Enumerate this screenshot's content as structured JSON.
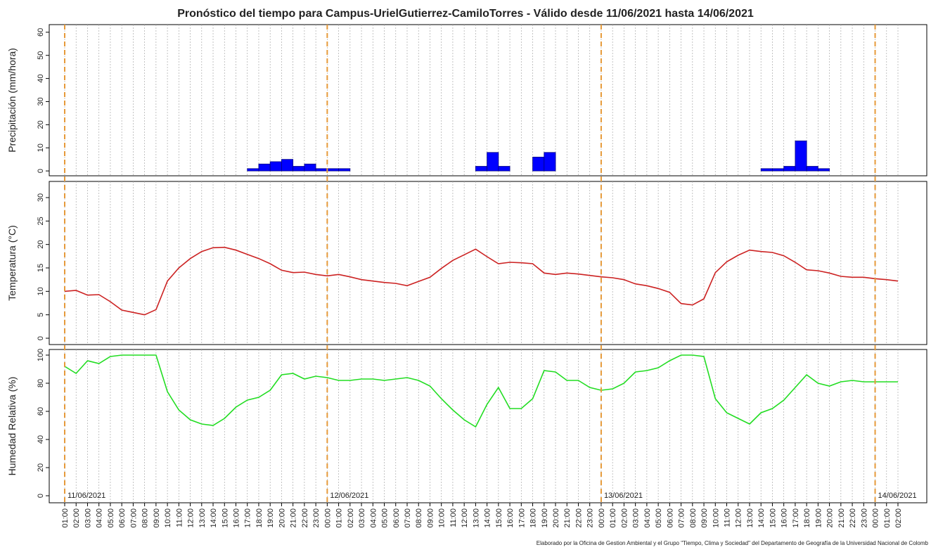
{
  "title": "Pronóstico del tiempo para Campus-UrielGutierrez-CamiloTorres - Válido desde 11/06/2021 hasta 14/06/2021",
  "source": "Elaborado por la Oficina de Gestion Ambiental y el Grupo \"Tiempo, Clima y Sociedad\" del Departamento de Geografía de la Universidad Nacional de Colomb",
  "categories": [
    "01:00",
    "02:00",
    "03:00",
    "04:00",
    "05:00",
    "06:00",
    "07:00",
    "08:00",
    "09:00",
    "10:00",
    "11:00",
    "12:00",
    "13:00",
    "14:00",
    "15:00",
    "16:00",
    "17:00",
    "18:00",
    "19:00",
    "20:00",
    "21:00",
    "22:00",
    "23:00",
    "00:00",
    "01:00",
    "02:00",
    "03:00",
    "04:00",
    "05:00",
    "06:00",
    "07:00",
    "08:00",
    "09:00",
    "10:00",
    "11:00",
    "12:00",
    "13:00",
    "14:00",
    "15:00",
    "16:00",
    "17:00",
    "18:00",
    "19:00",
    "20:00",
    "21:00",
    "22:00",
    "23:00",
    "00:00",
    "01:00",
    "02:00",
    "03:00",
    "04:00",
    "05:00",
    "06:00",
    "07:00",
    "08:00",
    "09:00",
    "10:00",
    "11:00",
    "12:00",
    "13:00",
    "14:00",
    "15:00",
    "16:00",
    "17:00",
    "18:00",
    "19:00",
    "20:00",
    "21:00",
    "22:00",
    "23:00",
    "00:00",
    "01:00",
    "02:00"
  ],
  "day_marks": [
    {
      "index": 0,
      "label": "11/06/2021"
    },
    {
      "index": 23,
      "label": "12/06/2021"
    },
    {
      "index": 47,
      "label": "13/06/2021"
    },
    {
      "index": 71,
      "label": "14/06/2021"
    }
  ],
  "grid": true,
  "chart_data": [
    {
      "type": "bar",
      "ylabel": "Precipitación (mm/hora)",
      "color": "#0000ff",
      "ylim": [
        -2.1,
        63.3
      ],
      "yticks": [
        0,
        10,
        20,
        30,
        40,
        50,
        60
      ],
      "values": [
        0,
        0,
        0,
        0,
        0,
        0,
        0,
        0,
        0,
        0,
        0,
        0,
        0,
        0,
        0,
        0,
        1,
        3,
        4,
        5,
        2,
        3,
        1,
        1,
        1,
        0,
        0,
        0,
        0,
        0,
        0,
        0,
        0,
        0,
        0,
        0,
        2,
        8,
        2,
        0,
        0,
        6,
        8,
        0,
        0,
        0,
        0,
        0,
        0,
        0,
        0,
        0,
        0,
        0,
        0,
        0,
        0,
        0,
        0,
        0,
        0,
        1,
        1,
        2,
        13,
        2,
        1,
        0,
        0,
        0,
        0,
        0,
        0,
        0
      ]
    },
    {
      "type": "line",
      "ylabel": "Temperatura (°C)",
      "color": "#cc2222",
      "ylim": [
        -1.35,
        33.45
      ],
      "yticks": [
        0,
        5,
        10,
        15,
        20,
        25,
        30
      ],
      "values": [
        10,
        10.2,
        9.2,
        9.3,
        7.8,
        6,
        5.5,
        5,
        6.1,
        12.2,
        15,
        17,
        18.5,
        19.3,
        19.4,
        18.8,
        17.9,
        17,
        15.9,
        14.5,
        14,
        14.1,
        13.6,
        13.3,
        13.6,
        13.1,
        12.5,
        12.2,
        11.9,
        11.7,
        11.2,
        12.1,
        13,
        14.9,
        16.6,
        17.8,
        19,
        17.4,
        15.9,
        16.2,
        16.1,
        15.9,
        13.9,
        13.6,
        13.9,
        13.7,
        13.4,
        13.1,
        12.9,
        12.5,
        11.6,
        11.2,
        10.6,
        9.8,
        7.4,
        7.1,
        8.4,
        14,
        16.3,
        17.7,
        18.8,
        18.5,
        18.3,
        17.6,
        16.2,
        14.6,
        14.4,
        13.9,
        13.2,
        13,
        13,
        12.7,
        12.5,
        12.2
      ]
    },
    {
      "type": "line",
      "ylabel": "Humedad Relativa (%)",
      "color": "#22dd22",
      "ylim": [
        -5,
        104
      ],
      "yticks": [
        0,
        20,
        40,
        60,
        80,
        100
      ],
      "values": [
        92,
        87,
        96,
        94,
        99,
        100,
        100,
        100,
        100,
        74,
        61,
        54,
        51,
        50,
        55,
        63,
        68,
        70,
        75,
        86,
        87,
        83,
        85,
        84,
        82,
        82,
        83,
        83,
        82,
        83,
        84,
        82,
        78,
        69,
        61,
        54,
        49,
        65,
        77,
        62,
        62,
        69,
        89,
        88,
        82,
        82,
        77,
        75,
        76,
        80,
        88,
        89,
        91,
        96,
        100,
        100,
        99,
        69,
        59,
        55,
        51,
        59,
        62,
        68,
        77,
        86,
        80,
        78,
        81,
        82,
        81,
        81,
        81,
        81
      ]
    }
  ]
}
